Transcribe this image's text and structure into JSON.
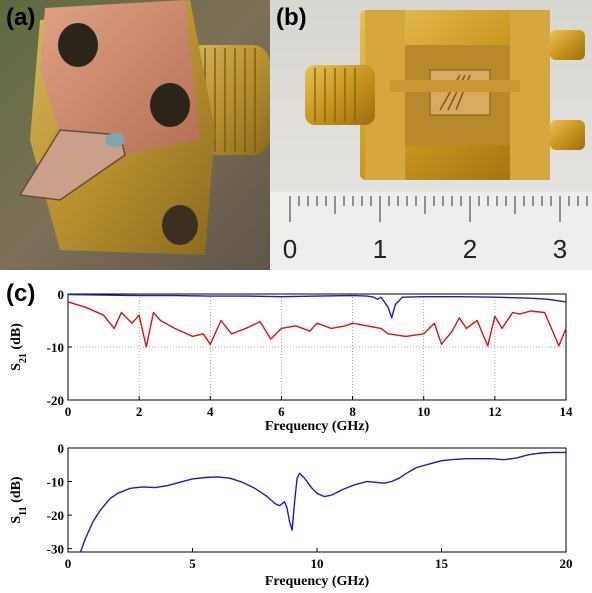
{
  "panels": {
    "a": {
      "label": "(a)"
    },
    "b": {
      "label": "(b)",
      "ruler_labels": [
        "0",
        "1",
        "2",
        "3"
      ]
    },
    "c": {
      "label": "(c)"
    }
  },
  "chart_data": [
    {
      "type": "line",
      "id": "s21",
      "ylabel": "S21 (dB)",
      "ylabel_main": "S",
      "ylabel_sub": "21",
      "ylabel_unit": " (dB)",
      "xlabel": "Frequency (GHz)",
      "xlim": [
        0,
        14
      ],
      "ylim": [
        -20,
        0
      ],
      "xticks": [
        0,
        2,
        4,
        6,
        8,
        10,
        12,
        14
      ],
      "yticks": [
        0,
        -10,
        -20
      ],
      "xtick_labels": [
        "0",
        "2",
        "4",
        "6",
        "8",
        "10",
        "12",
        "14"
      ],
      "ytick_labels": [
        "0",
        "-10",
        "-20"
      ],
      "grid": true,
      "series": [
        {
          "color": "#1a1acc",
          "x": [
            0,
            1,
            2,
            3,
            4,
            5,
            6,
            7,
            8,
            8.4,
            8.6,
            8.7,
            8.8,
            9.0,
            9.1,
            9.2,
            9.4,
            10,
            11,
            12,
            13,
            13.5,
            14
          ],
          "y": [
            -0.1,
            -0.2,
            -0.3,
            -0.3,
            -0.4,
            -0.4,
            -0.5,
            -0.4,
            -0.3,
            -0.4,
            -0.6,
            -1.0,
            -0.6,
            -2.5,
            -4.5,
            -2.0,
            -0.6,
            -0.5,
            -0.5,
            -0.6,
            -0.8,
            -1.0,
            -1.5
          ]
        },
        {
          "color": "#dd1111",
          "x": [
            0,
            0.5,
            1.0,
            1.3,
            1.5,
            1.8,
            2.0,
            2.2,
            2.4,
            2.6,
            3.0,
            3.5,
            3.8,
            4.0,
            4.3,
            4.6,
            5.0,
            5.4,
            5.7,
            6.0,
            6.4,
            6.8,
            7.0,
            7.4,
            7.8,
            8.0,
            8.4,
            8.8,
            9.0,
            9.5,
            10.0,
            10.3,
            10.5,
            10.8,
            11.0,
            11.2,
            11.5,
            11.8,
            12.0,
            12.2,
            12.5,
            12.7,
            13.0,
            13.4,
            13.8,
            14.0
          ],
          "y": [
            -1.5,
            -2.5,
            -4,
            -6.5,
            -3.5,
            -5.5,
            -4,
            -10,
            -3.5,
            -5,
            -6.5,
            -8,
            -7.5,
            -9.5,
            -5,
            -7.5,
            -6.5,
            -5.2,
            -8.5,
            -6.5,
            -6,
            -7,
            -5.5,
            -6.5,
            -6,
            -5.5,
            -6,
            -6.5,
            -7.5,
            -8,
            -7.5,
            -5.5,
            -9.5,
            -7,
            -4.5,
            -6.5,
            -5,
            -9.8,
            -4.2,
            -6.5,
            -3.5,
            -3.8,
            -3.2,
            -3.5,
            -9.8,
            -6.5
          ]
        }
      ]
    },
    {
      "type": "line",
      "id": "s11",
      "ylabel": "S11 (dB)",
      "ylabel_main": "S",
      "ylabel_sub": "11",
      "ylabel_unit": " (dB)",
      "xlabel": "Frequency (GHz)",
      "xlim": [
        0,
        20
      ],
      "ylim": [
        -31,
        0
      ],
      "xticks": [
        0,
        5,
        10,
        15,
        20
      ],
      "yticks": [
        0,
        -10,
        -20,
        -30
      ],
      "xtick_labels": [
        "0",
        "5",
        "10",
        "15",
        "20"
      ],
      "ytick_labels": [
        "0",
        "-10",
        "-20",
        "-30"
      ],
      "grid": false,
      "series": [
        {
          "color": "#1a1acc",
          "x": [
            0.5,
            0.7,
            1.0,
            1.3,
            1.7,
            2.0,
            2.5,
            3.0,
            3.5,
            4.0,
            4.5,
            5.0,
            5.5,
            6.0,
            6.5,
            7.0,
            7.5,
            8.0,
            8.3,
            8.5,
            8.7,
            8.8,
            8.9,
            9.0,
            9.1,
            9.2,
            9.3,
            9.5,
            9.8,
            10.0,
            10.3,
            10.6,
            11.0,
            11.5,
            12.0,
            12.3,
            12.7,
            13.0,
            13.3,
            13.6,
            14.0,
            14.5,
            15.0,
            15.5,
            16.0,
            16.5,
            17.0,
            17.5,
            18.0,
            18.5,
            19.0,
            19.5,
            20.0
          ],
          "y": [
            -31,
            -27,
            -22,
            -18.5,
            -15,
            -13.5,
            -12,
            -11.6,
            -11.8,
            -11.2,
            -10.2,
            -9.2,
            -8.8,
            -8.6,
            -9.0,
            -10.2,
            -12.0,
            -14.5,
            -16.5,
            -17.2,
            -16.0,
            -18.0,
            -22.0,
            -24.5,
            -16.0,
            -9.0,
            -7.5,
            -9.0,
            -12.0,
            -13.5,
            -14.5,
            -14.0,
            -12.5,
            -11.0,
            -10.0,
            -10.2,
            -10.5,
            -10.0,
            -9.0,
            -7.5,
            -5.8,
            -4.8,
            -3.8,
            -3.4,
            -3.2,
            -3.2,
            -3.2,
            -3.5,
            -3.0,
            -2.0,
            -1.5,
            -1.3,
            -1.3
          ]
        }
      ]
    }
  ]
}
